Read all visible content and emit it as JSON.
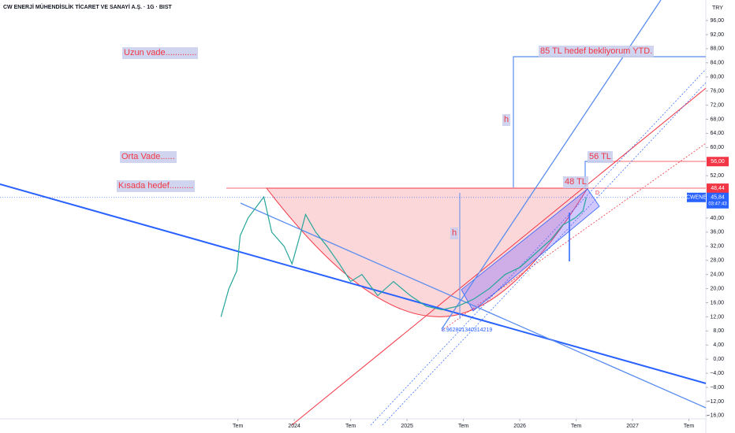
{
  "chart_data": {
    "type": "line",
    "title": "CW ENERJİ MÜHENDİSLİK TİCARET VE SANAYİ A.Ş. · 1G · BIST",
    "currency": "TRY",
    "xlim": [
      2021.39,
      2027.65
    ],
    "xticks": [
      {
        "value": 2023.5,
        "label": "Tem"
      },
      {
        "value": 2024,
        "label": "2024"
      },
      {
        "value": 2024.5,
        "label": "Tem"
      },
      {
        "value": 2025,
        "label": "2025"
      },
      {
        "value": 2025.5,
        "label": "Tem"
      },
      {
        "value": 2026,
        "label": "2026"
      },
      {
        "value": 2026.5,
        "label": "Tem"
      },
      {
        "value": 2027,
        "label": "2027"
      },
      {
        "value": 2027.5,
        "label": "Tem"
      }
    ],
    "ylim": [
      -18.7,
      101.8
    ],
    "yticks": [
      {
        "value": 96,
        "label": "96,00"
      },
      {
        "value": 92,
        "label": "92,00"
      },
      {
        "value": 88,
        "label": "88,00"
      },
      {
        "value": 84,
        "label": "84,00"
      },
      {
        "value": 80,
        "label": "80,00"
      },
      {
        "value": 76,
        "label": "76,00"
      },
      {
        "value": 72,
        "label": "72,00"
      },
      {
        "value": 68,
        "label": "68,00"
      },
      {
        "value": 64,
        "label": "64,00"
      },
      {
        "value": 60,
        "label": "60,00"
      },
      {
        "value": 52,
        "label": "52,00"
      },
      {
        "value": 40,
        "label": "40,00"
      },
      {
        "value": 36,
        "label": "36,00"
      },
      {
        "value": 32,
        "label": "32,00"
      },
      {
        "value": 28,
        "label": "28,00"
      },
      {
        "value": 24,
        "label": "24,00"
      },
      {
        "value": 20,
        "label": "20,00"
      },
      {
        "value": 16,
        "label": "16,00"
      },
      {
        "value": 12,
        "label": "12,00"
      },
      {
        "value": 8,
        "label": "8,00"
      },
      {
        "value": 4,
        "label": "4,00"
      },
      {
        "value": 0,
        "label": "0,00"
      },
      {
        "value": -4,
        "label": "−4,00"
      },
      {
        "value": -8,
        "label": "−8,00"
      },
      {
        "value": -12,
        "label": "−12,00"
      },
      {
        "value": -16,
        "label": "−16,00"
      }
    ],
    "series": [
      {
        "name": "CWENE",
        "color": "#26a69a",
        "x": [
          2023.35,
          2023.42,
          2023.49,
          2023.52,
          2023.59,
          2023.66,
          2023.73,
          2023.8,
          2023.91,
          2023.98,
          2024.05,
          2024.1,
          2024.19,
          2024.29,
          2024.4,
          2024.5,
          2024.6,
          2024.74,
          2024.88,
          2025.03,
          2025.17,
          2025.31,
          2025.45,
          2025.59,
          2025.73,
          2025.87,
          2026.0,
          2026.14,
          2026.28,
          2026.38,
          2026.49,
          2026.56,
          2026.59
        ],
        "values": [
          12,
          20,
          25,
          35,
          40,
          43,
          46,
          36,
          32,
          27,
          35,
          41,
          36,
          32,
          27,
          22,
          24,
          18,
          22,
          18,
          15,
          14,
          15,
          17,
          20,
          24,
          26,
          30,
          34,
          38,
          40,
          42,
          45.84
        ]
      }
    ],
    "price_labels": [
      {
        "value": 56,
        "label": "56,00",
        "color": "#f23645"
      },
      {
        "value": 48.44,
        "label": "48,44",
        "color": "#f23645"
      }
    ],
    "last_price": {
      "value": 45.84,
      "label": "45,84",
      "symbol": "CWENE",
      "countdown": "03:47:43",
      "color": "#2962ff"
    },
    "annotations": [
      "Uzun vade.............",
      "Orta Vade......",
      "Kısada hedef..........",
      "85 TL hedef bekliyorum YTD.",
      "56 TL",
      "48 TL",
      "h",
      "h",
      "8.962801340314219",
      "D"
    ]
  }
}
